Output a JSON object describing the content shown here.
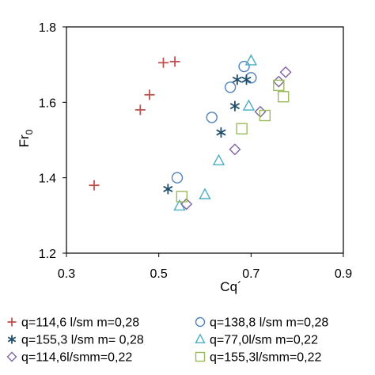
{
  "chart_data": {
    "type": "scatter",
    "title": "",
    "xlabel": "Cq´",
    "ylabel": "Fr0",
    "ylabel_main": "Fr",
    "ylabel_sub": "0",
    "xlim": [
      0.3,
      0.9
    ],
    "ylim": [
      1.2,
      1.8
    ],
    "xticks": [
      "0.3",
      "0.5",
      "0.7",
      "0.9"
    ],
    "yticks": [
      "1.2",
      "1.4",
      "1.6",
      "1.8"
    ],
    "grid": false,
    "legend_position": "bottom",
    "series": [
      {
        "name": "q=114,6 l/sm m=0,28",
        "marker": "plus",
        "color": "#c0504d",
        "points": [
          [
            0.36,
            1.38
          ],
          [
            0.46,
            1.58
          ],
          [
            0.48,
            1.62
          ],
          [
            0.51,
            1.705
          ],
          [
            0.535,
            1.708
          ]
        ]
      },
      {
        "name": "q=138,8 l/sm m=0,28",
        "marker": "circle",
        "color": "#4f81bd",
        "points": [
          [
            0.54,
            1.4
          ],
          [
            0.615,
            1.56
          ],
          [
            0.655,
            1.64
          ],
          [
            0.685,
            1.695
          ],
          [
            0.7,
            1.665
          ]
        ]
      },
      {
        "name": "q=155,3 l/sm  m= 0,28",
        "marker": "asterisk",
        "color": "#1f4e6a",
        "points": [
          [
            0.52,
            1.37
          ],
          [
            0.635,
            1.52
          ],
          [
            0.665,
            1.59
          ],
          [
            0.67,
            1.66
          ],
          [
            0.69,
            1.66
          ]
        ]
      },
      {
        "name": "q=77,0l/sm m=0,22",
        "marker": "triangle",
        "color": "#4bacc6",
        "points": [
          [
            0.545,
            1.325
          ],
          [
            0.6,
            1.355
          ],
          [
            0.63,
            1.445
          ],
          [
            0.695,
            1.59
          ],
          [
            0.7,
            1.71
          ]
        ]
      },
      {
        "name": "q=114,6l/smm=0,22",
        "marker": "diamond",
        "color": "#8064a2",
        "points": [
          [
            0.56,
            1.33
          ],
          [
            0.665,
            1.475
          ],
          [
            0.72,
            1.575
          ],
          [
            0.76,
            1.655
          ],
          [
            0.775,
            1.68
          ]
        ]
      },
      {
        "name": "q=155,3l/smm=0,22",
        "marker": "square",
        "color": "#9bbb59",
        "points": [
          [
            0.55,
            1.35
          ],
          [
            0.68,
            1.53
          ],
          [
            0.73,
            1.565
          ],
          [
            0.76,
            1.645
          ],
          [
            0.77,
            1.615
          ]
        ]
      }
    ]
  }
}
